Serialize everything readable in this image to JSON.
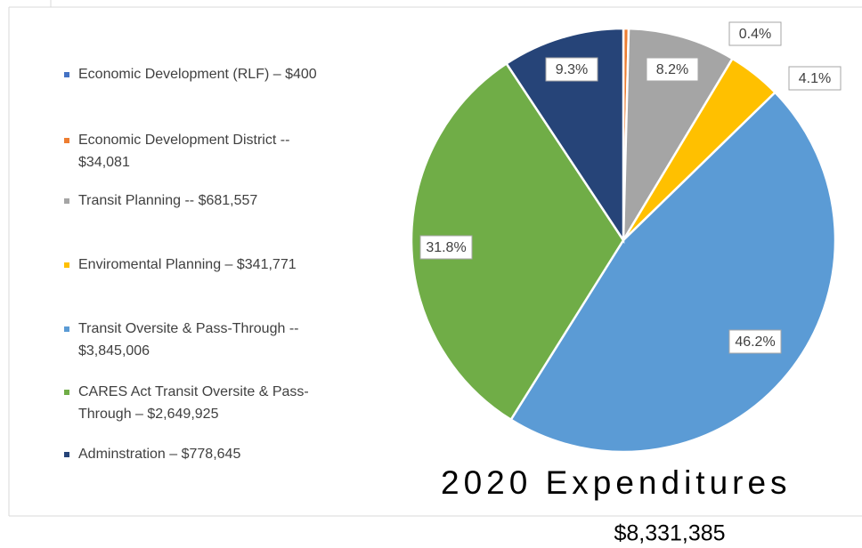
{
  "chart_data": {
    "type": "pie",
    "title": "2020 Expenditures",
    "subtitle": "$8,331,385",
    "categories": [
      "Economic Development (RLF) – $400",
      "Economic Development District -- $34,081",
      "Transit Planning -- $681,557",
      "Enviromental Planning – $341,771",
      "Transit Oversite & Pass-Through -- $3,845,006",
      "CARES Act Transit Oversite & Pass-Through – $2,649,925",
      "Adminstration – $778,645"
    ],
    "values": [
      0.005,
      0.4,
      8.2,
      4.1,
      46.2,
      31.8,
      9.3
    ],
    "value_labels": [
      null,
      "0.4%",
      "8.2%",
      "4.1%",
      "46.2%",
      "31.8%",
      "9.3%"
    ],
    "colors": [
      "#4472c4",
      "#ed7d31",
      "#a5a5a5",
      "#ffc000",
      "#5b9bd5",
      "#70ad47",
      "#264478"
    ]
  }
}
